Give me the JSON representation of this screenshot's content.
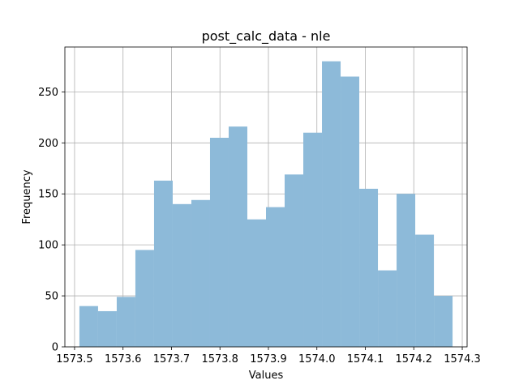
{
  "chart_data": {
    "type": "bar",
    "title": "post_calc_data - nle",
    "xlabel": "Values",
    "ylabel": "Frequency",
    "xlim": [
      1573.48,
      1574.31
    ],
    "ylim": [
      0,
      294
    ],
    "x_ticks": [
      1573.5,
      1573.6,
      1573.7,
      1573.8,
      1573.9,
      1574.0,
      1574.1,
      1574.2,
      1574.3
    ],
    "x_tick_labels": [
      "1573.5",
      "1573.6",
      "1573.7",
      "1573.8",
      "1573.9",
      "1574.0",
      "1574.1",
      "1574.2",
      "1574.3"
    ],
    "y_ticks": [
      0,
      50,
      100,
      150,
      200,
      250
    ],
    "y_tick_labels": [
      "0",
      "50",
      "100",
      "150",
      "200",
      "250"
    ],
    "grid": true,
    "bar_color": "#8dbad9",
    "bin_edges": [
      1573.51,
      1573.5485,
      1573.587,
      1573.6255,
      1573.664,
      1573.7025,
      1573.741,
      1573.7795,
      1573.818,
      1573.8565,
      1573.895,
      1573.9335,
      1573.972,
      1574.0105,
      1574.049,
      1574.0875,
      1574.126,
      1574.1645,
      1574.203,
      1574.2415,
      1574.28
    ],
    "values": [
      40,
      35,
      49,
      95,
      163,
      140,
      144,
      205,
      216,
      125,
      137,
      169,
      210,
      280,
      265,
      155,
      75,
      150,
      110,
      50
    ]
  }
}
